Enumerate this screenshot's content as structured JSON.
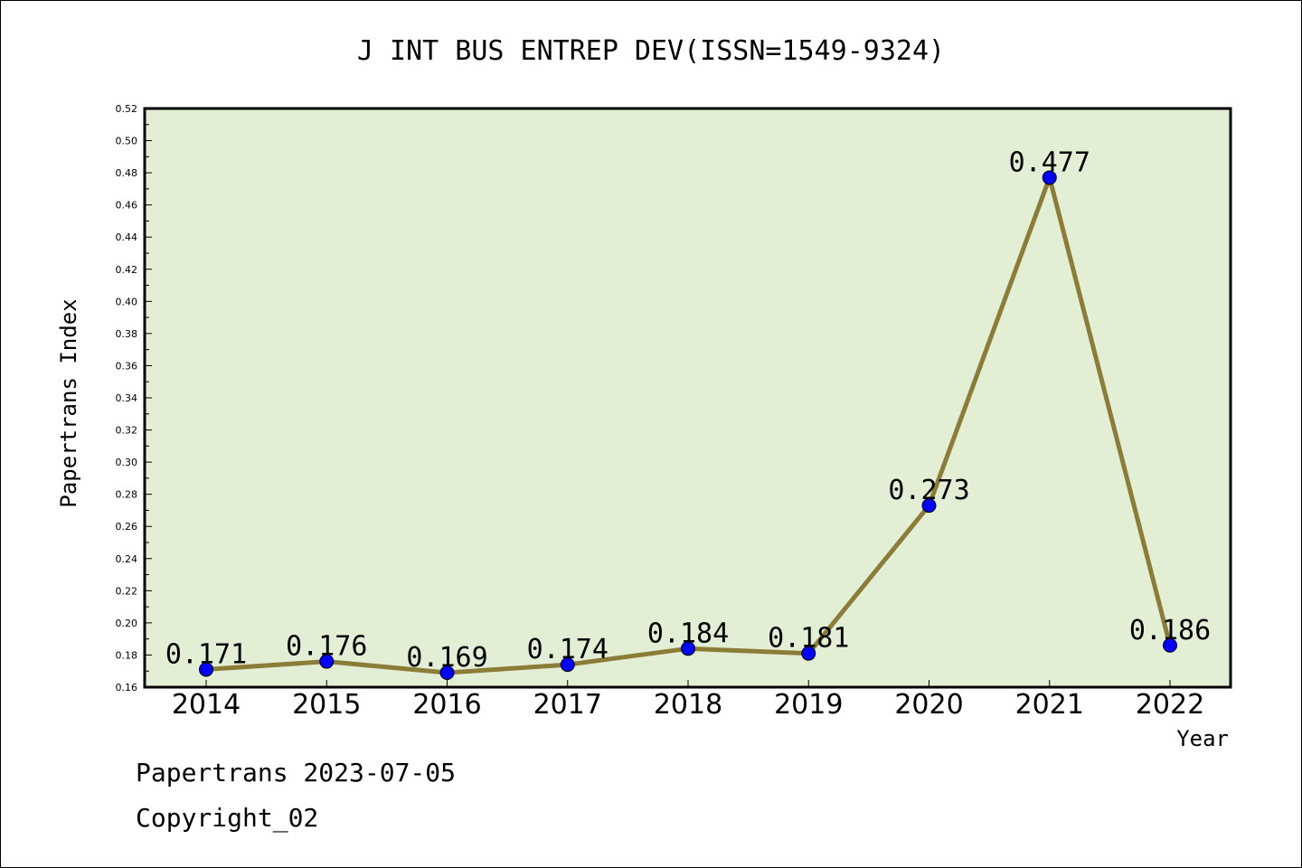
{
  "chart_data": {
    "type": "line",
    "title": "J INT BUS ENTREP DEV(ISSN=1549-9324)",
    "xlabel": "Year",
    "ylabel": "Papertrans Index",
    "categories": [
      "2014",
      "2015",
      "2016",
      "2017",
      "2018",
      "2019",
      "2020",
      "2021",
      "2022"
    ],
    "values": [
      0.171,
      0.176,
      0.169,
      0.174,
      0.184,
      0.181,
      0.273,
      0.477,
      0.186
    ],
    "value_labels": [
      "0.171",
      "0.176",
      "0.169",
      "0.174",
      "0.184",
      "0.181",
      "0.273",
      "0.477",
      "0.186"
    ],
    "ylim": [
      0.16,
      0.52
    ],
    "yticks": [
      "0.16",
      "0.18",
      "0.20",
      "0.22",
      "0.24",
      "0.26",
      "0.28",
      "0.30",
      "0.32",
      "0.34",
      "0.36",
      "0.38",
      "0.40",
      "0.42",
      "0.44",
      "0.46",
      "0.48",
      "0.50",
      "0.52"
    ],
    "grid": false,
    "line_color": "#8b7d37",
    "marker_color": "#0000ff",
    "plot_background": "#e2efd4"
  },
  "footer": {
    "line1": "Papertrans 2023-07-05",
    "line2": "Copyright_02"
  }
}
